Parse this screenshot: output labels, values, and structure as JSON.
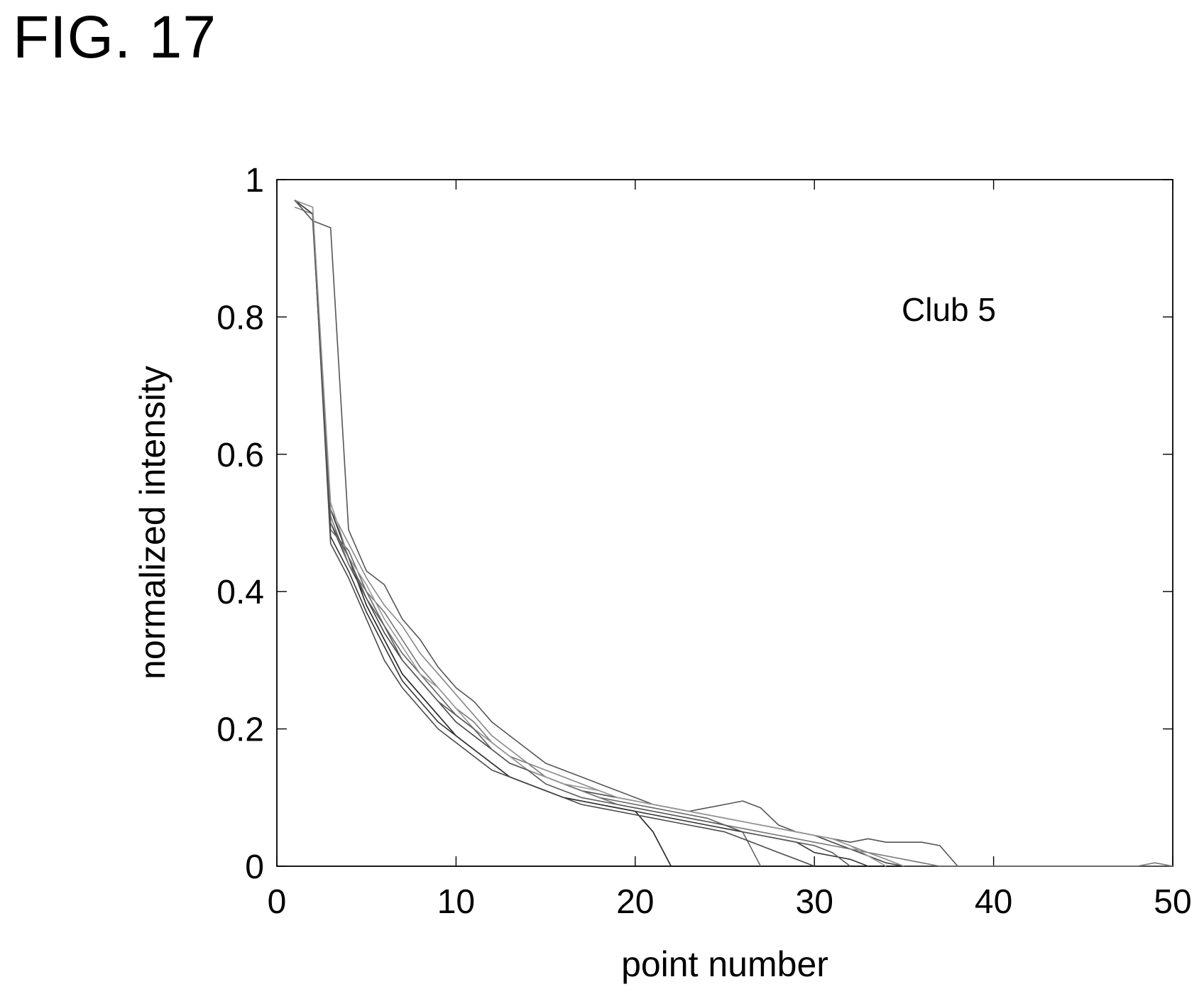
{
  "figure_label": "FIG. 17",
  "chart_data": {
    "type": "line",
    "title": "",
    "xlabel": "point number",
    "ylabel": "normalized intensity",
    "xlim": [
      0,
      50
    ],
    "ylim": [
      0,
      1
    ],
    "xticks": [
      0,
      10,
      20,
      30,
      40,
      50
    ],
    "xtick_labels": [
      "0",
      "10",
      "20",
      "30",
      "40",
      "50"
    ],
    "yticks": [
      0,
      0.2,
      0.4,
      0.6,
      0.8,
      1
    ],
    "ytick_labels": [
      "0",
      "0.2",
      "0.4",
      "0.6",
      "0.8",
      "1"
    ],
    "grid": false,
    "legend": "none",
    "annotation": "Club 5",
    "series_colors": [
      "#222222",
      "#444444",
      "#555555",
      "#666666",
      "#777777",
      "#333333",
      "#888888",
      "#4a4a4a",
      "#999999",
      "#5a5a5a"
    ],
    "series": [
      {
        "x": [
          1,
          2,
          3,
          4,
          5,
          6,
          7,
          8,
          9,
          10,
          11,
          12,
          13,
          14,
          15,
          16,
          17,
          18,
          19,
          20,
          21,
          22
        ],
        "values": [
          0.97,
          0.95,
          0.52,
          0.45,
          0.38,
          0.33,
          0.28,
          0.25,
          0.22,
          0.19,
          0.17,
          0.15,
          0.13,
          0.12,
          0.11,
          0.1,
          0.095,
          0.09,
          0.085,
          0.08,
          0.05,
          0.0
        ]
      },
      {
        "x": [
          1,
          2,
          3,
          4,
          5,
          6,
          7,
          8,
          9,
          10,
          11,
          12,
          13,
          14,
          15,
          16,
          17,
          18,
          19,
          20,
          21,
          22,
          23,
          24,
          25,
          26,
          27,
          28,
          29,
          30,
          31,
          32,
          33,
          34,
          35,
          36,
          37,
          38,
          39,
          40,
          41,
          42,
          43,
          44,
          45,
          46,
          47,
          48,
          49,
          50
        ],
        "values": [
          0.97,
          0.95,
          0.5,
          0.44,
          0.39,
          0.34,
          0.3,
          0.27,
          0.24,
          0.21,
          0.19,
          0.17,
          0.15,
          0.14,
          0.13,
          0.12,
          0.11,
          0.105,
          0.1,
          0.095,
          0.09,
          0.085,
          0.08,
          0.075,
          0.07,
          0.065,
          0.06,
          0.055,
          0.05,
          0.045,
          0.035,
          0.025,
          0.015,
          0.005,
          0.0,
          0.0,
          0.0,
          0.0,
          0.0,
          0.0,
          0.0,
          0.0,
          0.0,
          0.0,
          0.0,
          0.0,
          0.0,
          0.0,
          0.0,
          0.0
        ]
      },
      {
        "x": [
          1,
          2,
          3,
          4,
          5,
          6,
          7,
          8,
          9,
          10,
          11,
          12,
          13,
          14,
          15,
          16,
          17,
          18,
          19,
          20,
          21,
          22,
          23,
          24,
          25,
          26,
          27,
          28,
          29,
          30,
          31,
          32,
          33,
          34,
          35,
          36,
          37,
          38,
          39,
          40,
          41,
          42,
          43,
          44,
          45,
          46,
          47,
          48,
          49,
          50
        ],
        "values": [
          0.97,
          0.94,
          0.93,
          0.49,
          0.43,
          0.41,
          0.36,
          0.33,
          0.29,
          0.26,
          0.24,
          0.21,
          0.19,
          0.17,
          0.15,
          0.14,
          0.13,
          0.12,
          0.11,
          0.1,
          0.09,
          0.085,
          0.08,
          0.085,
          0.09,
          0.095,
          0.085,
          0.06,
          0.05,
          0.045,
          0.04,
          0.035,
          0.04,
          0.035,
          0.035,
          0.035,
          0.03,
          0.0,
          0.0,
          0.0,
          0.0,
          0.0,
          0.0,
          0.0,
          0.0,
          0.0,
          0.0,
          0.0,
          0.0,
          0.0
        ]
      },
      {
        "x": [
          1,
          2,
          3,
          4,
          5,
          6,
          7,
          8,
          9,
          10,
          11,
          12,
          13,
          14,
          15,
          16,
          17,
          18,
          19,
          20,
          21,
          22,
          23,
          24,
          25,
          26,
          27
        ],
        "values": [
          0.97,
          0.95,
          0.49,
          0.46,
          0.4,
          0.35,
          0.31,
          0.28,
          0.25,
          0.22,
          0.2,
          0.18,
          0.16,
          0.14,
          0.13,
          0.12,
          0.11,
          0.1,
          0.095,
          0.09,
          0.085,
          0.08,
          0.075,
          0.07,
          0.06,
          0.05,
          0.0
        ]
      },
      {
        "x": [
          1,
          2,
          3,
          4,
          5,
          6,
          7,
          8,
          9,
          10,
          11,
          12,
          13,
          14,
          15,
          16,
          17,
          18,
          19,
          20,
          21,
          22,
          23,
          24,
          25,
          26,
          27,
          28,
          29,
          30,
          31,
          32,
          33,
          34,
          35,
          36,
          37,
          38,
          39,
          40,
          41,
          42,
          43,
          44,
          45,
          46,
          47,
          48,
          49,
          50
        ],
        "values": [
          0.97,
          0.96,
          0.51,
          0.44,
          0.4,
          0.37,
          0.33,
          0.29,
          0.26,
          0.23,
          0.21,
          0.18,
          0.16,
          0.15,
          0.13,
          0.12,
          0.11,
          0.1,
          0.09,
          0.085,
          0.08,
          0.075,
          0.07,
          0.065,
          0.06,
          0.055,
          0.05,
          0.045,
          0.04,
          0.035,
          0.03,
          0.025,
          0.02,
          0.015,
          0.01,
          0.005,
          0.0,
          0.0,
          0.0,
          0.0,
          0.0,
          0.0,
          0.0,
          0.0,
          0.0,
          0.0,
          0.0,
          0.0,
          0.005,
          0.0
        ]
      },
      {
        "x": [
          1,
          2,
          3,
          4,
          5,
          6,
          7,
          8,
          9,
          10,
          11,
          12,
          13,
          14,
          15,
          16,
          17,
          18,
          19,
          20,
          21,
          22,
          23,
          24,
          25,
          26,
          27,
          28,
          29,
          30,
          31,
          32,
          33
        ],
        "values": [
          0.97,
          0.95,
          0.48,
          0.43,
          0.37,
          0.32,
          0.27,
          0.24,
          0.21,
          0.19,
          0.17,
          0.15,
          0.13,
          0.12,
          0.11,
          0.1,
          0.095,
          0.09,
          0.085,
          0.08,
          0.075,
          0.07,
          0.065,
          0.06,
          0.055,
          0.05,
          0.045,
          0.04,
          0.035,
          0.02,
          0.015,
          0.01,
          0.0
        ]
      },
      {
        "x": [
          1,
          2,
          3,
          4,
          5,
          6,
          7,
          8,
          9,
          10,
          11,
          12,
          13,
          14,
          15,
          16,
          17,
          18,
          19,
          20,
          21,
          22,
          23,
          24,
          25,
          26,
          27,
          28,
          29,
          30,
          31,
          32,
          33,
          34,
          35
        ],
        "values": [
          0.96,
          0.95,
          0.52,
          0.47,
          0.42,
          0.38,
          0.35,
          0.31,
          0.28,
          0.25,
          0.22,
          0.19,
          0.17,
          0.15,
          0.14,
          0.13,
          0.12,
          0.11,
          0.1,
          0.095,
          0.09,
          0.085,
          0.08,
          0.075,
          0.07,
          0.065,
          0.06,
          0.055,
          0.05,
          0.045,
          0.04,
          0.03,
          0.02,
          0.01,
          0.0
        ]
      },
      {
        "x": [
          1,
          2,
          3,
          4,
          5,
          6,
          7,
          8,
          9,
          10,
          11,
          12,
          13,
          14,
          15,
          16,
          17,
          18,
          19,
          20,
          21,
          22,
          23,
          24,
          25,
          26,
          27,
          28,
          29,
          30
        ],
        "values": [
          0.97,
          0.95,
          0.47,
          0.42,
          0.36,
          0.3,
          0.26,
          0.23,
          0.2,
          0.18,
          0.16,
          0.14,
          0.13,
          0.12,
          0.11,
          0.1,
          0.09,
          0.085,
          0.08,
          0.075,
          0.07,
          0.065,
          0.06,
          0.055,
          0.05,
          0.04,
          0.03,
          0.02,
          0.01,
          0.0
        ]
      },
      {
        "x": [
          1,
          2,
          3,
          4,
          5,
          6,
          7,
          8,
          9,
          10,
          11,
          12,
          13,
          14,
          15,
          16,
          17,
          18,
          19,
          20,
          21,
          22,
          23,
          24,
          25,
          26,
          27,
          28,
          29,
          30,
          31,
          32,
          33,
          34
        ],
        "values": [
          0.97,
          0.96,
          0.53,
          0.45,
          0.41,
          0.36,
          0.32,
          0.28,
          0.26,
          0.23,
          0.2,
          0.18,
          0.16,
          0.14,
          0.13,
          0.12,
          0.115,
          0.11,
          0.1,
          0.095,
          0.09,
          0.085,
          0.08,
          0.075,
          0.07,
          0.065,
          0.06,
          0.055,
          0.05,
          0.045,
          0.04,
          0.03,
          0.015,
          0.0
        ]
      },
      {
        "x": [
          1,
          2,
          3,
          4,
          5,
          6,
          7,
          8,
          9,
          10,
          11,
          12,
          13,
          14,
          15,
          16,
          17,
          18,
          19,
          20,
          21,
          22,
          23,
          24,
          25,
          26,
          27,
          28,
          29,
          30,
          31,
          32
        ],
        "values": [
          0.97,
          0.94,
          0.5,
          0.45,
          0.39,
          0.35,
          0.3,
          0.27,
          0.24,
          0.22,
          0.2,
          0.17,
          0.15,
          0.14,
          0.12,
          0.11,
          0.1,
          0.095,
          0.09,
          0.085,
          0.08,
          0.075,
          0.07,
          0.065,
          0.06,
          0.05,
          0.045,
          0.04,
          0.035,
          0.03,
          0.02,
          0.0
        ]
      }
    ]
  }
}
